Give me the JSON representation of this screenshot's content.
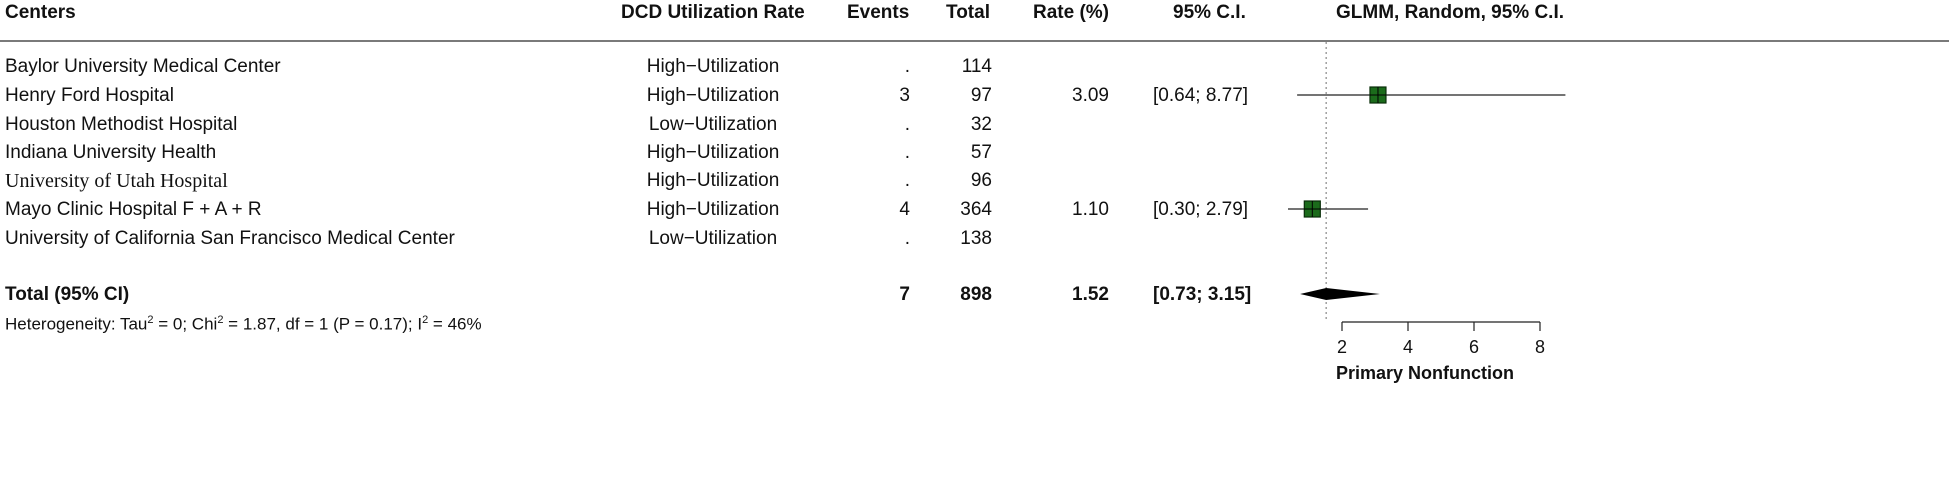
{
  "header": {
    "centers": "Centers",
    "utilization": "DCD Utilization Rate",
    "events": "Events",
    "total": "Total",
    "rate": "Rate (%)",
    "ci": "95% C.I.",
    "model": "GLMM, Random, 95% C.I."
  },
  "rows": [
    {
      "center": "Baylor University Medical Center",
      "utilization": "High−Utilization",
      "events": ".",
      "total": "114",
      "rate": "",
      "ci": ""
    },
    {
      "center": "Henry Ford Hospital",
      "utilization": "High−Utilization",
      "events": "3",
      "total": "97",
      "rate": "3.09",
      "ci": "[0.64; 8.77]"
    },
    {
      "center": "Houston Methodist Hospital",
      "utilization": "Low−Utilization",
      "events": ".",
      "total": "32",
      "rate": "",
      "ci": ""
    },
    {
      "center": "Indiana University Health",
      "utilization": "High−Utilization",
      "events": ".",
      "total": "57",
      "rate": "",
      "ci": ""
    },
    {
      "center": "University of Utah Hospital",
      "utilization": "High−Utilization",
      "events": ".",
      "total": "96",
      "rate": "",
      "ci": ""
    },
    {
      "center": "Mayo Clinic Hospital F + A + R",
      "utilization": "High−Utilization",
      "events": "4",
      "total": "364",
      "rate": "1.10",
      "ci": "[0.30; 2.79]"
    },
    {
      "center": "University of California San Francisco Medical Center",
      "utilization": "Low−Utilization",
      "events": ".",
      "total": "138",
      "rate": "",
      "ci": ""
    }
  ],
  "total_row": {
    "label": "Total (95% CI)",
    "events": "7",
    "total": "898",
    "rate": "1.52",
    "ci": "[0.73; 3.15]"
  },
  "heterogeneity": {
    "tau_prefix": "Heterogeneity: Tau",
    "tau_sup": "2",
    "chi_prefix": " = 0; Chi",
    "chi_sup": "2",
    "rest": " = 1.87, df = 1 (P = 0.17); I",
    "i_sup": "2",
    "i_value": " = 46%"
  },
  "chart_data": {
    "type": "forest",
    "xlabel": "Primary Nonfunction",
    "xticks": [
      2,
      4,
      6,
      8
    ],
    "xlim": [
      0.5,
      8.5
    ],
    "reference_line": 1.52,
    "studies": [
      {
        "name": "Henry Ford Hospital",
        "estimate": 3.09,
        "lower": 0.64,
        "upper": 8.77
      },
      {
        "name": "Mayo Clinic Hospital F + A + R",
        "estimate": 1.1,
        "lower": 0.3,
        "upper": 2.79
      }
    ],
    "pooled": {
      "estimate": 1.52,
      "lower": 0.73,
      "upper": 3.15
    },
    "colors": {
      "square": "#1b6b1b",
      "square_border": "#0a2f0a",
      "line": "#222222",
      "diamond": "#000000",
      "reference": "#888888"
    }
  }
}
